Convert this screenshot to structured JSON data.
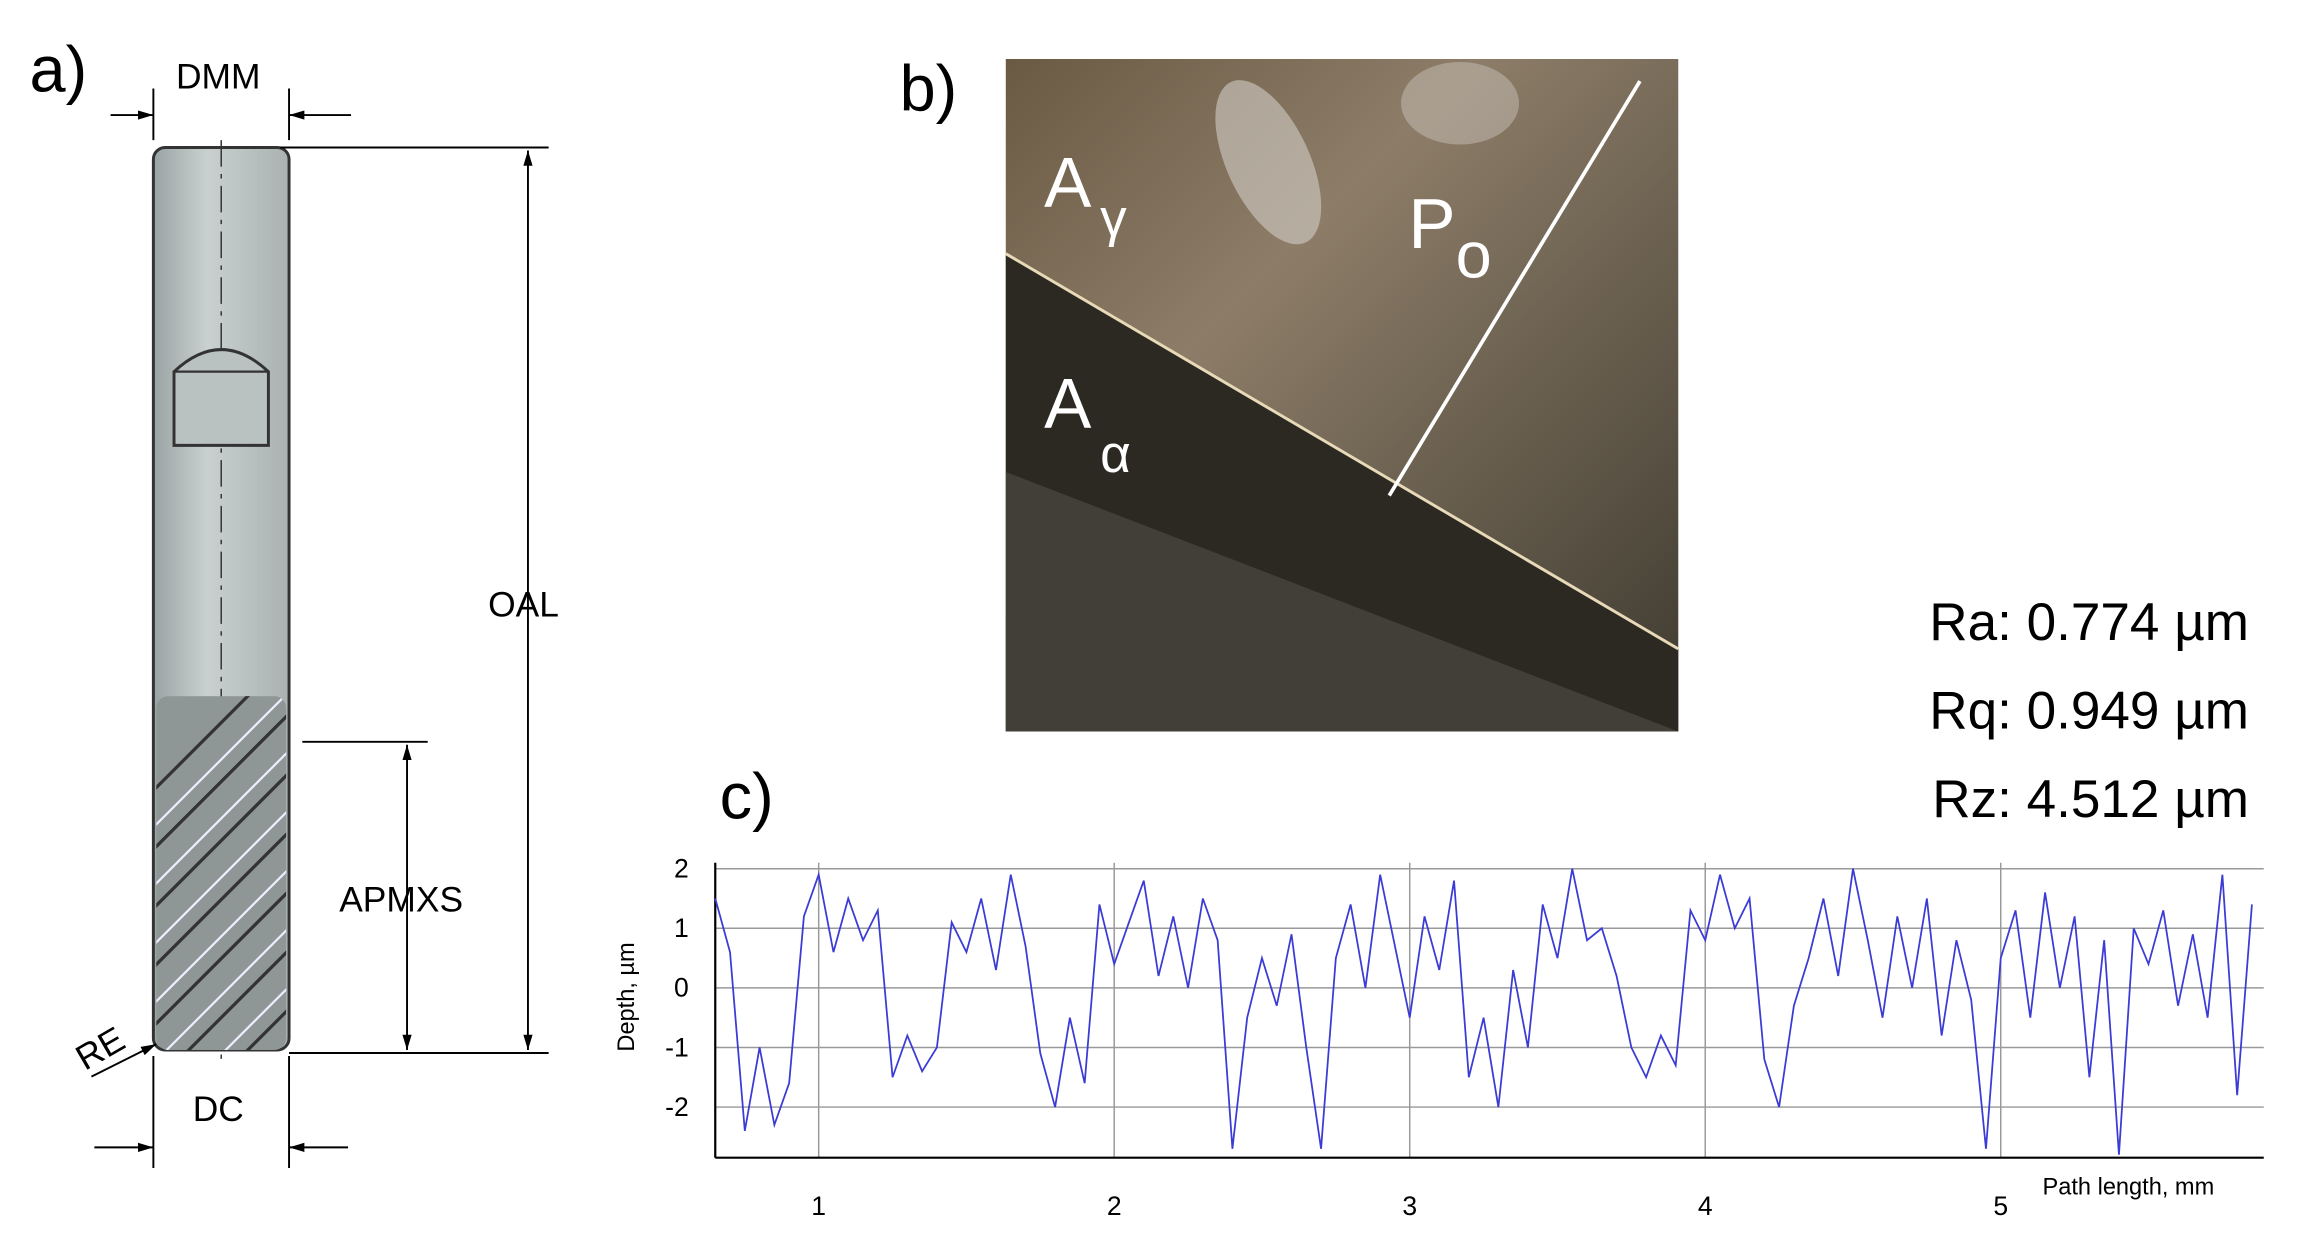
{
  "panel_labels": [
    "a)",
    "b)",
    "c)"
  ],
  "drawing": {
    "dmm": "DMM",
    "oal": "OAL",
    "apmxs": "APMXS",
    "re": "RE",
    "dc": "DC"
  },
  "photo": {
    "rake_face": {
      "text": "A",
      "sub": "γ"
    },
    "flank_face": {
      "text": "A",
      "sub": "α"
    },
    "plane": {
      "text": "P",
      "sub": "o"
    }
  },
  "roughness": [
    "Ra: 0.774 µm",
    "Rq: 0.949 µm",
    "Rz: 4.512 µm"
  ],
  "chart_data": {
    "type": "line",
    "x_label": "Path length, mm",
    "y_label": "Depth, µm",
    "x": [
      0.65,
      0.7,
      0.75,
      0.8,
      0.85,
      0.9,
      0.95,
      1.0,
      1.05,
      1.1,
      1.15,
      1.2,
      1.25,
      1.3,
      1.35,
      1.4,
      1.45,
      1.5,
      1.55,
      1.6,
      1.65,
      1.7,
      1.75,
      1.8,
      1.85,
      1.9,
      1.95,
      2.0,
      2.05,
      2.1,
      2.15,
      2.2,
      2.25,
      2.3,
      2.35,
      2.4,
      2.45,
      2.5,
      2.55,
      2.6,
      2.65,
      2.7,
      2.75,
      2.8,
      2.85,
      2.9,
      2.95,
      3.0,
      3.05,
      3.1,
      3.15,
      3.2,
      3.25,
      3.3,
      3.35,
      3.4,
      3.45,
      3.5,
      3.55,
      3.6,
      3.65,
      3.7,
      3.75,
      3.8,
      3.85,
      3.9,
      3.95,
      4.0,
      4.05,
      4.1,
      4.15,
      4.2,
      4.25,
      4.3,
      4.35,
      4.4,
      4.45,
      4.5,
      4.55,
      4.6,
      4.65,
      4.7,
      4.75,
      4.8,
      4.85,
      4.9,
      4.95,
      5.0,
      5.05,
      5.1,
      5.15,
      5.2,
      5.25,
      5.3,
      5.35,
      5.4,
      5.45,
      5.5,
      5.55,
      5.6,
      5.65,
      5.7,
      5.75,
      5.8,
      5.85
    ],
    "series": [
      {
        "color": "#3b3bd6",
        "values": [
          1.5,
          0.6,
          -2.4,
          -1.0,
          -2.3,
          -1.6,
          1.2,
          1.9,
          0.6,
          1.5,
          0.8,
          1.3,
          -1.5,
          -0.8,
          -1.4,
          -1.0,
          1.1,
          0.6,
          1.5,
          0.3,
          1.9,
          0.7,
          -1.1,
          -2.0,
          -0.5,
          -1.6,
          1.4,
          0.4,
          1.1,
          1.8,
          0.2,
          1.2,
          0.0,
          1.5,
          0.8,
          -2.7,
          -0.5,
          0.5,
          -0.3,
          0.9,
          -1.0,
          -2.7,
          0.5,
          1.4,
          0.0,
          1.9,
          0.7,
          -0.5,
          1.2,
          0.3,
          1.8,
          -1.5,
          -0.5,
          -2.0,
          0.3,
          -1.0,
          1.4,
          0.5,
          2.0,
          0.8,
          1.0,
          0.2,
          -1.0,
          -1.5,
          -0.8,
          -1.3,
          1.3,
          0.8,
          1.9,
          1.0,
          1.5,
          -1.2,
          -2.0,
          -0.3,
          0.5,
          1.5,
          0.2,
          2.0,
          0.8,
          -0.5,
          1.2,
          0.0,
          1.5,
          -0.8,
          0.8,
          -0.2,
          -2.7,
          0.5,
          1.3,
          -0.5,
          1.6,
          0.0,
          1.2,
          -1.5,
          0.8,
          -2.8,
          1.0,
          0.4,
          1.3,
          -0.3,
          0.9,
          -0.5,
          1.9,
          -1.8,
          1.4
        ]
      }
    ],
    "xlim": [
      0.65,
      5.89
    ],
    "ylim": [
      -2.85,
      2.1
    ],
    "xticks": [
      1,
      2,
      3,
      4,
      5
    ],
    "yticks": [
      2,
      1,
      0,
      -1,
      -2
    ],
    "grid": true
  }
}
